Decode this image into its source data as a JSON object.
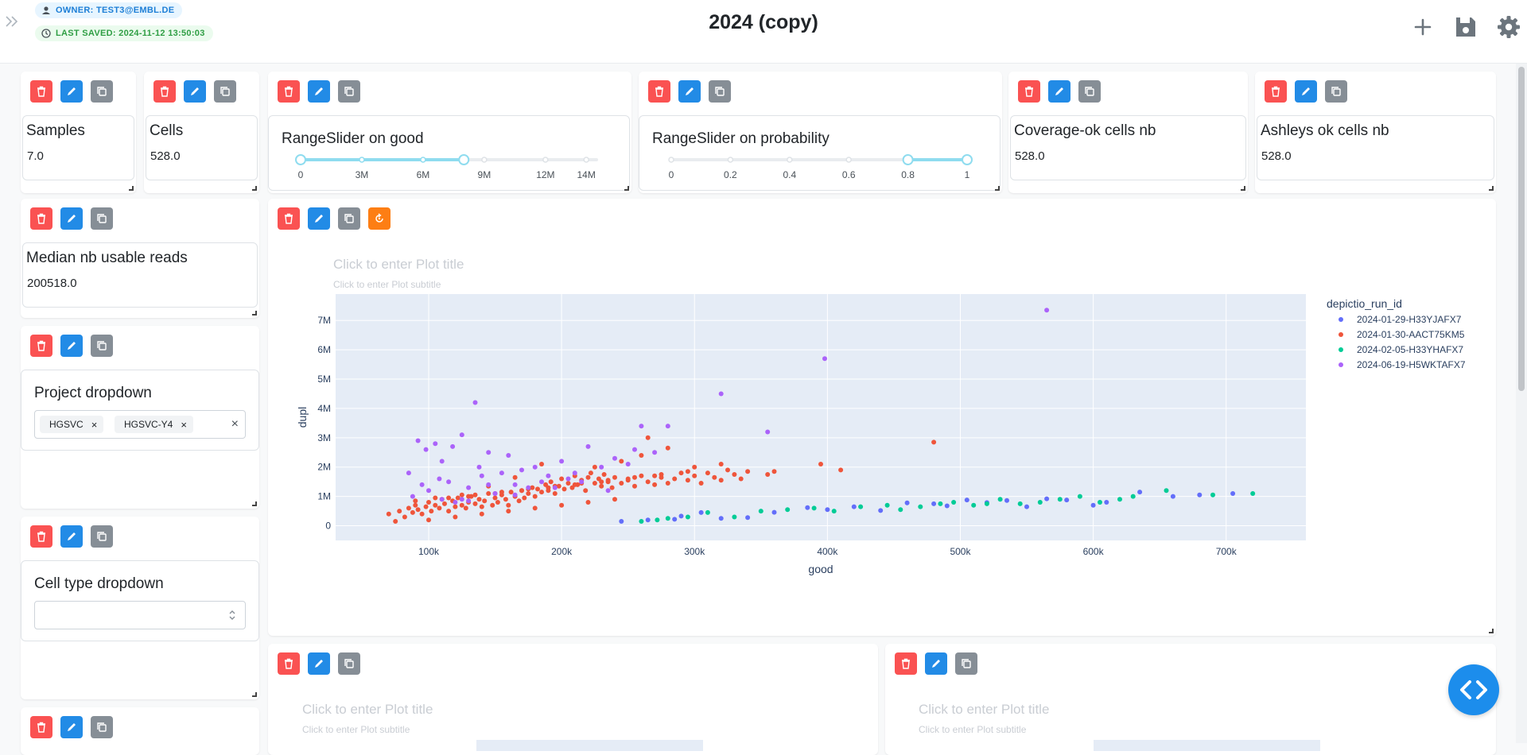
{
  "header": {
    "owner_badge": "OWNER: TEST3@EMBL.DE",
    "saved_badge": "LAST SAVED: 2024-11-12 13:50:03",
    "title": "2024 (copy)"
  },
  "icons": {
    "expand": "chevrons-right-icon",
    "add": "plus-icon",
    "save": "floppy-disk-icon",
    "settings": "gear-icon",
    "delete": "trash-icon",
    "edit": "pencil-icon",
    "duplicate": "copy-icon",
    "reset": "reset-icon",
    "code": "code-brackets-icon"
  },
  "colors": {
    "delete": "#fa5252",
    "edit": "#228be6",
    "duplicate": "#868e96",
    "reset": "#fd7e14",
    "owner_badge_bg": "#e7f5ff",
    "saved_badge_bg": "#ebfbee",
    "slider_accent": "#8fdcef"
  },
  "metrics": {
    "samples": {
      "title": "Samples",
      "value": "7.0"
    },
    "cells": {
      "title": "Cells",
      "value": "528.0"
    },
    "coverage": {
      "title": "Coverage-ok cells nb",
      "value": "528.0"
    },
    "ashleys": {
      "title": "Ashleys ok cells nb",
      "value": "528.0"
    },
    "median": {
      "title": "Median nb usable reads",
      "value": "200518.0"
    }
  },
  "sliders": {
    "good": {
      "title": "RangeSlider on good",
      "min": 0,
      "max": 14500000,
      "range": [
        0,
        8000000
      ],
      "ticks": [
        {
          "value": 0,
          "label": "0"
        },
        {
          "value": 3000000,
          "label": "3M"
        },
        {
          "value": 6000000,
          "label": "6M"
        },
        {
          "value": 9000000,
          "label": "9M"
        },
        {
          "value": 12000000,
          "label": "12M"
        },
        {
          "value": 14000000,
          "label": "14M"
        }
      ]
    },
    "probability": {
      "title": "RangeSlider on probability",
      "min": 0,
      "max": 1,
      "range": [
        0.8,
        1
      ],
      "ticks": [
        {
          "value": 0,
          "label": "0"
        },
        {
          "value": 0.2,
          "label": "0.2"
        },
        {
          "value": 0.4,
          "label": "0.4"
        },
        {
          "value": 0.6,
          "label": "0.6"
        },
        {
          "value": 0.8,
          "label": "0.8"
        },
        {
          "value": 1,
          "label": "1"
        }
      ]
    }
  },
  "project_dropdown": {
    "title": "Project dropdown",
    "selected": [
      "HGSVC",
      "HGSVC-Y4"
    ]
  },
  "celltype_dropdown": {
    "title": "Cell type dropdown",
    "value": ""
  },
  "scatter": {
    "title_placeholder": "Click to enter Plot title",
    "subtitle_placeholder": "Click to enter Plot subtitle"
  },
  "bottom_plots": [
    {
      "title_placeholder": "Click to enter Plot title",
      "subtitle_placeholder": "Click to enter Plot subtitle"
    },
    {
      "title_placeholder": "Click to enter Plot title",
      "subtitle_placeholder": "Click to enter Plot subtitle"
    }
  ],
  "chart_data": {
    "type": "scatter",
    "title": "",
    "xlabel": "good",
    "ylabel": "dupl",
    "xlim": [
      30000,
      760000
    ],
    "ylim": [
      -500000,
      7900000
    ],
    "x_ticks": [
      {
        "value": 100000,
        "label": "100k"
      },
      {
        "value": 200000,
        "label": "200k"
      },
      {
        "value": 300000,
        "label": "300k"
      },
      {
        "value": 400000,
        "label": "400k"
      },
      {
        "value": 500000,
        "label": "500k"
      },
      {
        "value": 600000,
        "label": "600k"
      },
      {
        "value": 700000,
        "label": "700k"
      }
    ],
    "y_ticks": [
      {
        "value": 0,
        "label": "0"
      },
      {
        "value": 1000000,
        "label": "1M"
      },
      {
        "value": 2000000,
        "label": "2M"
      },
      {
        "value": 3000000,
        "label": "3M"
      },
      {
        "value": 4000000,
        "label": "4M"
      },
      {
        "value": 5000000,
        "label": "5M"
      },
      {
        "value": 6000000,
        "label": "6M"
      },
      {
        "value": 7000000,
        "label": "7M"
      }
    ],
    "legend_title": "depictio_run_id",
    "legend_position": "right",
    "grid": true,
    "series": [
      {
        "name": "2024-01-29-H33YJAFX7",
        "color": "#636efa",
        "x": [
          245000,
          265000,
          285000,
          290000,
          305000,
          320000,
          340000,
          360000,
          385000,
          400000,
          420000,
          440000,
          460000,
          480000,
          490000,
          505000,
          520000,
          535000,
          550000,
          565000,
          580000,
          600000,
          610000,
          635000,
          660000,
          680000,
          705000
        ],
        "y": [
          150000,
          200000,
          220000,
          330000,
          450000,
          250000,
          280000,
          460000,
          620000,
          550000,
          650000,
          520000,
          780000,
          750000,
          680000,
          880000,
          790000,
          860000,
          650000,
          920000,
          880000,
          700000,
          800000,
          1150000,
          1000000,
          1050000,
          1100000
        ]
      },
      {
        "name": "2024-01-30-AACT75KM5",
        "color": "#ef553b",
        "x": [
          70000,
          75000,
          78000,
          82000,
          85000,
          88000,
          90000,
          92000,
          95000,
          98000,
          100000,
          102000,
          105000,
          108000,
          110000,
          112000,
          115000,
          118000,
          120000,
          122000,
          125000,
          128000,
          130000,
          132000,
          135000,
          138000,
          140000,
          142000,
          145000,
          148000,
          150000,
          152000,
          155000,
          158000,
          160000,
          162000,
          165000,
          168000,
          170000,
          172000,
          175000,
          178000,
          180000,
          182000,
          185000,
          188000,
          190000,
          192000,
          195000,
          198000,
          200000,
          202000,
          205000,
          208000,
          210000,
          212000,
          215000,
          218000,
          220000,
          222000,
          225000,
          228000,
          230000,
          232000,
          235000,
          238000,
          240000,
          245000,
          250000,
          255000,
          260000,
          265000,
          270000,
          275000,
          280000,
          285000,
          290000,
          295000,
          300000,
          305000,
          310000,
          315000,
          320000,
          325000,
          330000,
          335000,
          340000,
          355000,
          360000,
          395000,
          410000,
          480000,
          100000,
          120000,
          140000,
          160000,
          180000,
          200000,
          220000,
          240000,
          130000,
          150000,
          170000,
          190000,
          210000,
          230000,
          250000,
          270000,
          115000,
          135000,
          155000,
          175000,
          195000,
          215000,
          235000,
          255000,
          275000,
          295000,
          260000,
          280000,
          300000,
          320000,
          265000,
          225000,
          245000,
          185000,
          165000,
          145000,
          125000,
          105000,
          90000
        ],
        "y": [
          400000,
          150000,
          500000,
          300000,
          600000,
          450000,
          700000,
          550000,
          400000,
          650000,
          800000,
          500000,
          700000,
          600000,
          900000,
          750000,
          500000,
          850000,
          650000,
          950000,
          700000,
          600000,
          800000,
          1000000,
          750000,
          900000,
          650000,
          850000,
          1100000,
          700000,
          950000,
          800000,
          1050000,
          900000,
          700000,
          1150000,
          1000000,
          850000,
          1200000,
          950000,
          1100000,
          1300000,
          1000000,
          1250000,
          1150000,
          1400000,
          1200000,
          1500000,
          1100000,
          1350000,
          1600000,
          1250000,
          1450000,
          1300000,
          1700000,
          1400000,
          1550000,
          1200000,
          1650000,
          1800000,
          1450000,
          1600000,
          1350000,
          1750000,
          1500000,
          1300000,
          1650000,
          1450000,
          1550000,
          1350000,
          1700000,
          1500000,
          1400000,
          1650000,
          1450000,
          1600000,
          1800000,
          1550000,
          1700000,
          1450000,
          1800000,
          1650000,
          1550000,
          1900000,
          1750000,
          1600000,
          1850000,
          1750000,
          1850000,
          2100000,
          1900000,
          2850000,
          200000,
          300000,
          400000,
          500000,
          600000,
          700000,
          800000,
          900000,
          1000000,
          1100000,
          1200000,
          1300000,
          1400000,
          1500000,
          1600000,
          1700000,
          950000,
          1050000,
          1150000,
          1250000,
          1350000,
          1450000,
          1550000,
          1650000,
          1750000,
          1850000,
          2400000,
          2650000,
          2000000,
          2100000,
          3000000,
          2000000,
          2200000,
          2100000,
          1650000,
          1350000,
          1050000,
          950000,
          850000
        ],
        "note": ""
      },
      {
        "name": "2024-02-05-H33YHAFX7",
        "color": "#00cc96",
        "x": [
          260000,
          272000,
          280000,
          295000,
          310000,
          330000,
          350000,
          370000,
          390000,
          405000,
          425000,
          445000,
          455000,
          470000,
          485000,
          495000,
          510000,
          520000,
          530000,
          545000,
          560000,
          575000,
          590000,
          605000,
          620000,
          630000,
          655000,
          690000,
          720000
        ],
        "y": [
          150000,
          200000,
          250000,
          300000,
          450000,
          300000,
          500000,
          550000,
          600000,
          500000,
          650000,
          700000,
          550000,
          650000,
          750000,
          800000,
          700000,
          750000,
          900000,
          750000,
          800000,
          900000,
          1000000,
          800000,
          900000,
          1000000,
          1200000,
          1050000,
          1100000
        ]
      },
      {
        "name": "2024-06-19-H5WKTAFX7",
        "color": "#ab63fa",
        "x": [
          85000,
          88000,
          92000,
          95000,
          98000,
          100000,
          105000,
          108000,
          110000,
          115000,
          118000,
          120000,
          125000,
          130000,
          135000,
          138000,
          140000,
          145000,
          150000,
          155000,
          160000,
          165000,
          170000,
          175000,
          180000,
          185000,
          190000,
          195000,
          200000,
          210000,
          215000,
          220000,
          230000,
          240000,
          250000,
          255000,
          260000,
          270000,
          280000,
          320000,
          355000,
          398000,
          565000,
          125000,
          145000,
          165000,
          205000,
          235000,
          110000,
          130000
        ],
        "y": [
          1800000,
          1000000,
          2900000,
          1400000,
          2600000,
          1200000,
          2800000,
          1600000,
          2200000,
          1500000,
          2700000,
          800000,
          3100000,
          1300000,
          4200000,
          2000000,
          1700000,
          2500000,
          1100000,
          1800000,
          2400000,
          1400000,
          1900000,
          1300000,
          2000000,
          1500000,
          1700000,
          1300000,
          2200000,
          1800000,
          1500000,
          2700000,
          2000000,
          2300000,
          2100000,
          2600000,
          3400000,
          2500000,
          3400000,
          4500000,
          3200000,
          5700000,
          7350000,
          900000,
          1400000,
          1050000,
          1600000,
          1200000,
          900000,
          850000
        ]
      }
    ]
  }
}
